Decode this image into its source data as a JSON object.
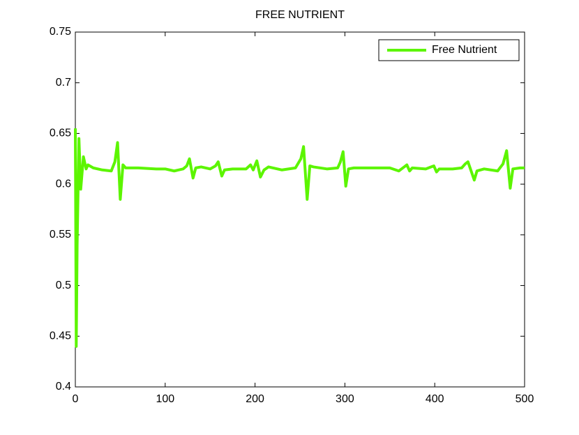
{
  "chart_data": {
    "type": "line",
    "title": "FREE NUTRIENT",
    "x": [
      0,
      1,
      2,
      4,
      6,
      9,
      12,
      14,
      20,
      30,
      40,
      44,
      47,
      50,
      53,
      56,
      70,
      90,
      100,
      110,
      120,
      124,
      127,
      131,
      134,
      140,
      150,
      156,
      159,
      163,
      166,
      175,
      190,
      195,
      198,
      202,
      206,
      210,
      215,
      230,
      245,
      251,
      254,
      258,
      261,
      265,
      280,
      292,
      295,
      298,
      301,
      304,
      310,
      330,
      350,
      360,
      366,
      369,
      372,
      375,
      390,
      396,
      399,
      402,
      405,
      420,
      430,
      434,
      437,
      444,
      447,
      455,
      470,
      476,
      480,
      484,
      487,
      495,
      500
    ],
    "series": [
      {
        "name": "Free Nutrient",
        "color": "#5cf500",
        "values": [
          0.655,
          0.44,
          0.54,
          0.645,
          0.595,
          0.627,
          0.615,
          0.619,
          0.616,
          0.614,
          0.613,
          0.622,
          0.641,
          0.585,
          0.619,
          0.616,
          0.616,
          0.615,
          0.615,
          0.613,
          0.615,
          0.618,
          0.625,
          0.606,
          0.616,
          0.617,
          0.615,
          0.618,
          0.622,
          0.608,
          0.614,
          0.615,
          0.615,
          0.619,
          0.614,
          0.623,
          0.607,
          0.614,
          0.617,
          0.614,
          0.616,
          0.625,
          0.637,
          0.585,
          0.618,
          0.617,
          0.615,
          0.616,
          0.622,
          0.632,
          0.598,
          0.615,
          0.616,
          0.616,
          0.616,
          0.613,
          0.617,
          0.619,
          0.613,
          0.616,
          0.615,
          0.617,
          0.618,
          0.612,
          0.615,
          0.615,
          0.616,
          0.62,
          0.622,
          0.604,
          0.613,
          0.615,
          0.613,
          0.62,
          0.633,
          0.596,
          0.615,
          0.616,
          0.616
        ]
      }
    ],
    "xlim": [
      0,
      500
    ],
    "xticks": [
      0,
      100,
      200,
      300,
      400,
      500
    ],
    "ylim": [
      0.4,
      0.75
    ],
    "yticks": [
      0.4,
      0.45,
      0.5,
      0.55,
      0.6,
      0.65,
      0.7,
      0.75
    ],
    "legend": "upper right"
  }
}
